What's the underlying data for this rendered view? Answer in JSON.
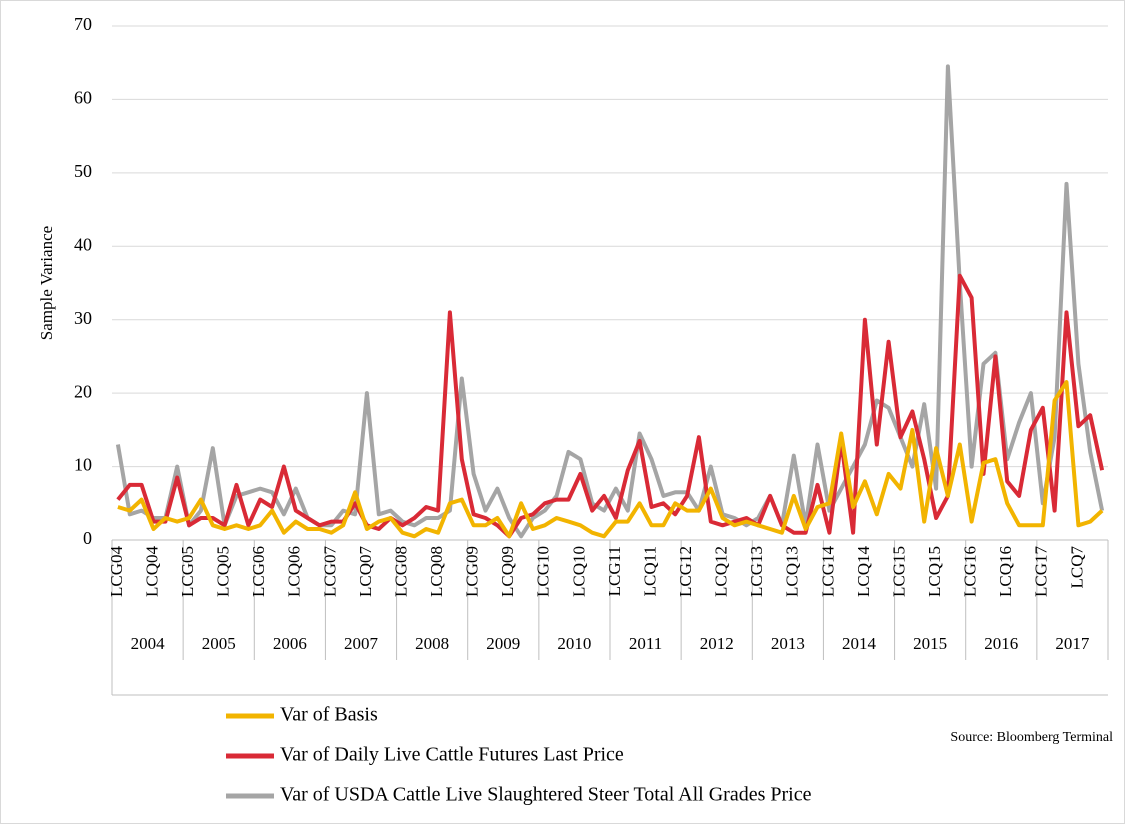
{
  "chart_data": {
    "type": "line",
    "y_label": "Sample Variance",
    "source": "Source: Bloomberg Terminal",
    "ylim": [
      0,
      70
    ],
    "yticks": [
      0,
      10,
      20,
      30,
      40,
      50,
      60,
      70
    ],
    "grid": true,
    "categories": [
      "LCG04",
      null,
      null,
      "LCQ04",
      null,
      null,
      "LCG05",
      null,
      null,
      "LCQ05",
      null,
      null,
      "LCG06",
      null,
      null,
      "LCQ06",
      null,
      null,
      "LCG07",
      null,
      null,
      "LCQ07",
      null,
      null,
      "LCG08",
      null,
      null,
      "LCQ08",
      null,
      null,
      "LCG09",
      null,
      null,
      "LCQ09",
      null,
      null,
      "LCG10",
      null,
      null,
      "LCQ10",
      null,
      null,
      "LCG11",
      null,
      null,
      "LCQ11",
      null,
      null,
      "LCG12",
      null,
      null,
      "LCQ12",
      null,
      null,
      "LCG13",
      null,
      null,
      "LCQ13",
      null,
      null,
      "LCG14",
      null,
      null,
      "LCQ14",
      null,
      null,
      "LCG15",
      null,
      null,
      "LCQ15",
      null,
      null,
      "LCG16",
      null,
      null,
      "LCQ16",
      null,
      null,
      "LCG17",
      null,
      null,
      "LCQ7",
      null,
      null
    ],
    "groups": [
      "2004",
      "2005",
      "2006",
      "2007",
      "2008",
      "2009",
      "2010",
      "2011",
      "2012",
      "2013",
      "2014",
      "2015",
      "2016",
      "2017"
    ],
    "series": [
      {
        "name": "Var of Basis",
        "color": "#f2b400",
        "values": [
          4.5,
          4,
          5.5,
          1.5,
          3,
          2.5,
          3,
          5.5,
          2,
          1.5,
          2,
          1.5,
          2,
          4,
          1,
          2.5,
          1.5,
          1.5,
          1,
          2,
          6.5,
          1.5,
          2.5,
          3,
          1,
          0.5,
          1.5,
          1,
          5,
          5.5,
          2,
          2,
          3,
          0.5,
          5,
          1.5,
          2,
          3,
          2.5,
          2,
          1,
          0.5,
          2.5,
          2.5,
          5,
          2,
          2,
          5,
          4,
          4,
          7,
          3,
          2,
          2.5,
          2,
          1.5,
          1,
          6,
          1.5,
          4.5,
          5,
          14.5,
          4.5,
          8,
          3.5,
          9,
          7,
          15,
          2.5,
          12.5,
          6,
          13,
          2.5,
          10.5,
          11,
          5,
          2,
          2,
          2,
          19,
          21.5,
          2,
          2.5,
          4
        ]
      },
      {
        "name": "Var of Daily Live Cattle Futures Last Price",
        "color": "#d92a36",
        "values": [
          5.5,
          7.5,
          7.5,
          2.5,
          2.5,
          8.5,
          2,
          3,
          3,
          2,
          7.5,
          2,
          5.5,
          4.5,
          10,
          4,
          3,
          2,
          2.5,
          2.5,
          5,
          2,
          1.5,
          3,
          2,
          3,
          4.5,
          4,
          31,
          11,
          3.5,
          3,
          2,
          0.5,
          3,
          3.5,
          5,
          5.5,
          5.5,
          9,
          4,
          6,
          3,
          9.5,
          13.5,
          4.5,
          5,
          3.5,
          6,
          14,
          2.5,
          2,
          2.5,
          3,
          2,
          6,
          2,
          1,
          1,
          7.5,
          1,
          13.5,
          1,
          30,
          13,
          27,
          14,
          17.5,
          11,
          3,
          6,
          36,
          33,
          9,
          25,
          8,
          6,
          15,
          18,
          4,
          31,
          15.5,
          17,
          9.5
        ]
      },
      {
        "name": "Var of USDA Cattle Live Slaughtered Steer Total All Grades Price",
        "color": "#a5a5a5",
        "values": [
          13,
          3.5,
          4,
          3,
          3,
          10,
          2,
          4,
          12.5,
          2,
          6,
          6.5,
          7,
          6.5,
          3.5,
          7,
          3,
          2,
          2,
          4,
          3.5,
          20,
          3.5,
          4,
          2.5,
          2,
          3,
          3,
          4,
          22,
          9,
          4,
          7,
          3,
          0.5,
          3,
          4,
          6,
          12,
          11,
          5,
          4,
          7,
          4,
          14.5,
          11,
          6,
          6.5,
          6.5,
          4,
          10,
          3.5,
          3,
          2,
          3,
          6,
          2,
          11.5,
          2,
          13,
          4,
          7,
          10,
          13,
          19,
          18,
          14,
          10,
          18.5,
          7,
          64.5,
          35,
          10,
          24,
          25.5,
          11,
          16,
          20,
          5,
          14,
          48.5,
          24,
          12,
          4
        ]
      }
    ]
  }
}
